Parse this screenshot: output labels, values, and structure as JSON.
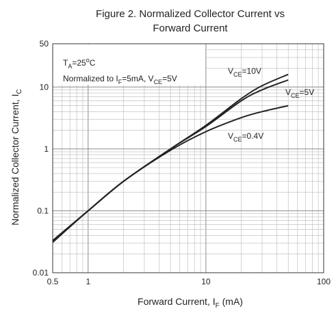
{
  "chart_data": {
    "type": "line",
    "title": [
      "Figure 2. Normalized Collector Current vs",
      "Forward Current"
    ],
    "xlabel": {
      "main": "Forward Current, I",
      "sub": "F",
      "tail": " (mA)"
    },
    "ylabel": {
      "main": "Normalized Collector Current, I",
      "sub": "C"
    },
    "xscale": "log",
    "yscale": "log",
    "xlim": [
      0.5,
      100
    ],
    "ylim": [
      0.01,
      50
    ],
    "xticks": [
      0.5,
      1,
      10,
      100
    ],
    "xtick_labels": [
      "0.5",
      "1",
      "10",
      "100"
    ],
    "yticks": [
      0.01,
      0.1,
      1,
      10,
      50
    ],
    "ytick_labels": [
      "0.01",
      "0.1",
      "1",
      "10",
      "50"
    ],
    "grid": true,
    "annotations": {
      "conditions": {
        "ta": {
          "a": "T",
          "b": "A",
          "c": "=25",
          "d": "o",
          "e": "C"
        },
        "norm": {
          "a": "Normalized to I",
          "b": "F",
          "c": "=5mA, V",
          "d": "CE",
          "e": "=5V"
        }
      },
      "series_labels": [
        {
          "a": "V",
          "b": "CE",
          "c": "=10V"
        },
        {
          "a": "V",
          "b": "CE",
          "c": "=5V"
        },
        {
          "a": "V",
          "b": "CE",
          "c": "=0.4V"
        }
      ]
    },
    "series": [
      {
        "label_index": 0,
        "x": [
          0.5,
          1,
          2,
          5,
          10,
          20,
          30,
          50
        ],
        "y": [
          0.033,
          0.1,
          0.3,
          1.0,
          2.4,
          6.5,
          10.5,
          16
        ]
      },
      {
        "label_index": 1,
        "x": [
          0.5,
          1,
          2,
          5,
          10,
          20,
          30,
          50
        ],
        "y": [
          0.033,
          0.1,
          0.3,
          1.0,
          2.3,
          6.0,
          9.0,
          13
        ]
      },
      {
        "label_index": 2,
        "x": [
          0.5,
          1,
          2,
          5,
          10,
          20,
          30,
          50
        ],
        "y": [
          0.031,
          0.1,
          0.3,
          0.95,
          1.9,
          3.2,
          4.0,
          5.0
        ]
      }
    ],
    "colors": {
      "line": "#222222",
      "grid": "#b8b8b8",
      "major_grid": "#8a8a8a"
    }
  }
}
